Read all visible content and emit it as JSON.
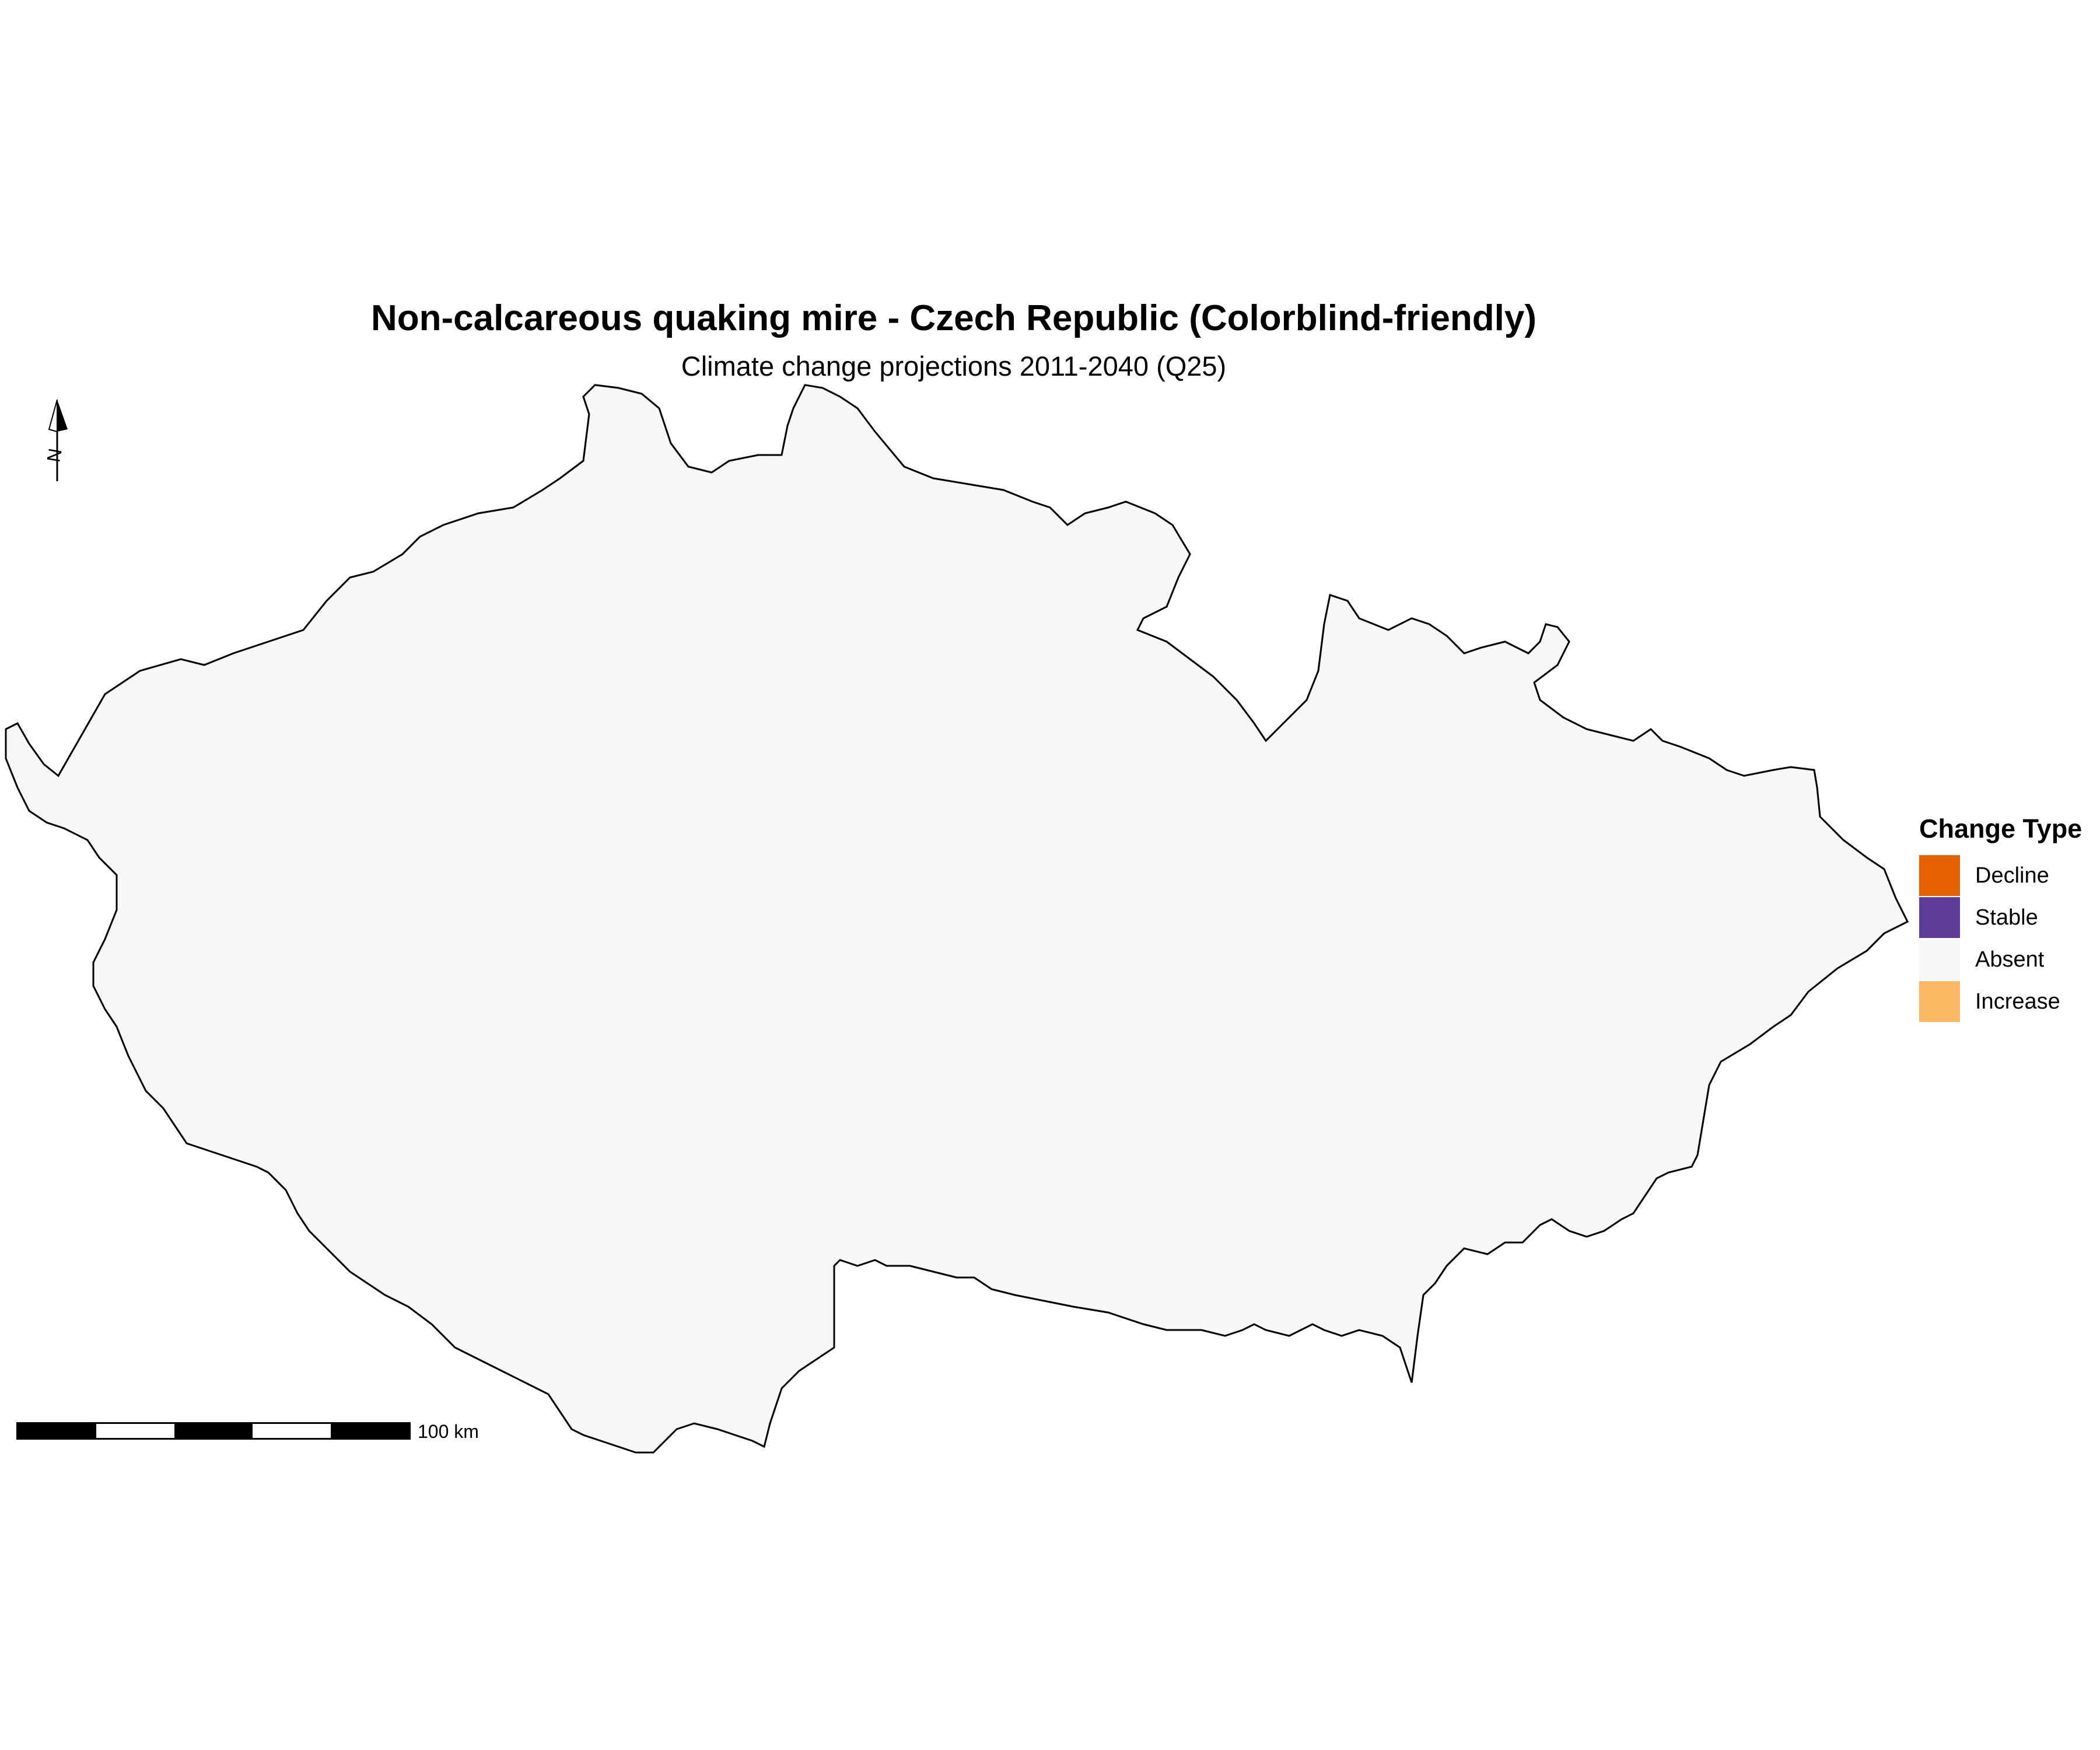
{
  "title": "Non-calcareous quaking mire - Czech Republic (Colorblind-friendly)",
  "subtitle": "Climate change projections 2011-2040 (Q25)",
  "north_arrow": {
    "label": "N",
    "icon": "north-arrow-icon"
  },
  "scale_bar": {
    "label": "100 km"
  },
  "legend": {
    "title": "Change Type",
    "items": [
      {
        "label": "Decline",
        "color": "#e66100"
      },
      {
        "label": "Stable",
        "color": "#5e3c99"
      },
      {
        "label": "Absent",
        "color": "#f7f7f7"
      },
      {
        "label": "Increase",
        "color": "#fdb863"
      }
    ]
  },
  "colors": {
    "decline": "#e66100",
    "stable": "#5e3c99",
    "absent": "#f7f7f7",
    "increase": "#fdb863",
    "border": "#000000"
  }
}
